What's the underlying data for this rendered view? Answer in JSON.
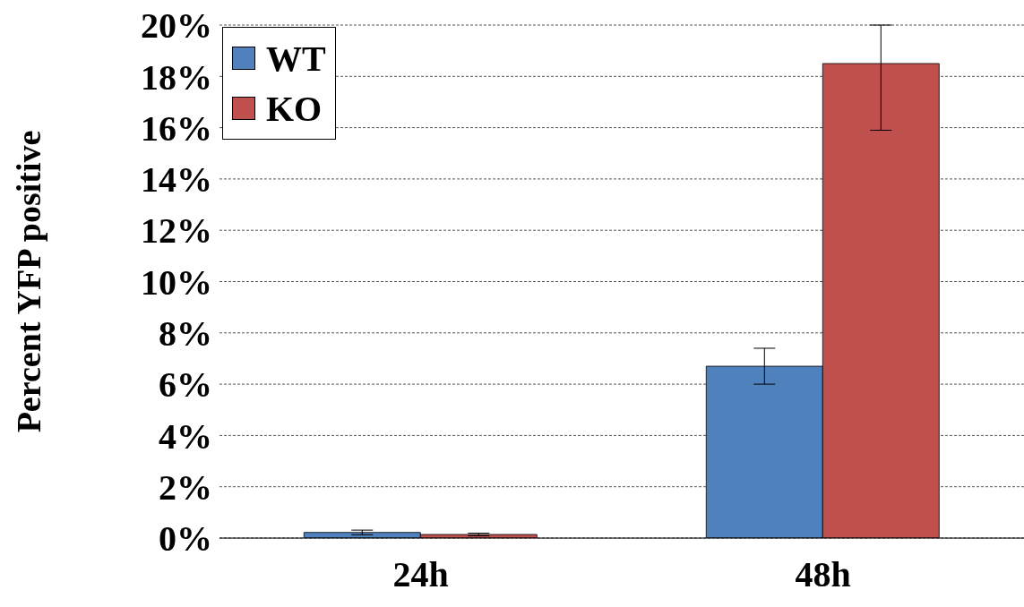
{
  "chart_data": {
    "type": "bar",
    "ylabel": "Percent YFP positive",
    "categories": [
      "24h",
      "48h"
    ],
    "series": [
      {
        "name": "WT",
        "color": "#4f81bd",
        "values": [
          0.22,
          6.7
        ],
        "errors": [
          0.09,
          0.7
        ]
      },
      {
        "name": "KO",
        "color": "#c0504d",
        "values": [
          0.14,
          18.5
        ],
        "errors": [
          0.05,
          [
            15.9,
            20
          ]
        ]
      }
    ],
    "ylim": [
      0,
      20
    ],
    "yticks": [
      {
        "value": 0,
        "label": "0%"
      },
      {
        "value": 2,
        "label": "2%"
      },
      {
        "value": 4,
        "label": "4%"
      },
      {
        "value": 6,
        "label": "6%"
      },
      {
        "value": 8,
        "label": "8%"
      },
      {
        "value": 10,
        "label": "10%"
      },
      {
        "value": 12,
        "label": "12%"
      },
      {
        "value": 14,
        "label": "14%"
      },
      {
        "value": 16,
        "label": "16%"
      },
      {
        "value": 18,
        "label": "18%"
      },
      {
        "value": 20,
        "label": "20%"
      }
    ],
    "grid": "y",
    "legend": "top left"
  }
}
